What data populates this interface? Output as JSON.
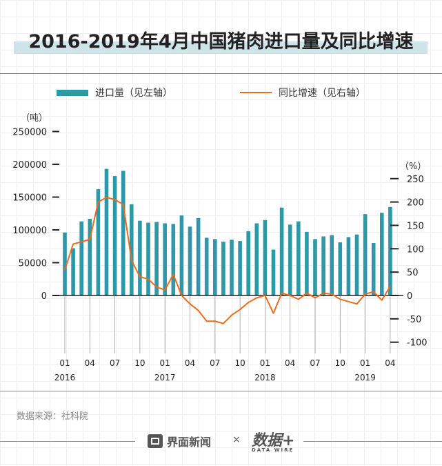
{
  "title": "2016-2019年4月中国猪肉进口量及同比增速",
  "legend": {
    "bar_label": "进口量（见左轴）",
    "line_label": "同比增速（见右轴）"
  },
  "left_unit": "（吨）",
  "right_unit": "（%）",
  "source": "数据来源：社科院",
  "footer": {
    "brand1": "界面新闻",
    "times": "×",
    "brand2": "数据+",
    "brand2_sub": "DATA WIRE"
  },
  "colors": {
    "bar": "#2e97a8",
    "line": "#ef6a1a"
  },
  "chart_data": {
    "type": "bar",
    "title": "2016-2019年4月中国猪肉进口量及同比增速",
    "x_tick_labels": [
      "01",
      "04",
      "07",
      "10",
      "01",
      "04",
      "07",
      "10",
      "01",
      "04",
      "07",
      "10",
      "01",
      "04"
    ],
    "year_labels": [
      "2016",
      "2017",
      "2018",
      "2019"
    ],
    "categories": [
      "2016-01",
      "2016-02",
      "2016-03",
      "2016-04",
      "2016-05",
      "2016-06",
      "2016-07",
      "2016-08",
      "2016-09",
      "2016-10",
      "2016-11",
      "2016-12",
      "2017-01",
      "2017-02",
      "2017-03",
      "2017-04",
      "2017-05",
      "2017-06",
      "2017-07",
      "2017-08",
      "2017-09",
      "2017-10",
      "2017-11",
      "2017-12",
      "2018-01",
      "2018-02",
      "2018-03",
      "2018-04",
      "2018-05",
      "2018-06",
      "2018-07",
      "2018-08",
      "2018-09",
      "2018-10",
      "2018-11",
      "2018-12",
      "2019-01",
      "2019-02",
      "2019-03",
      "2019-04"
    ],
    "series": [
      {
        "name": "进口量（见左轴）",
        "axis": "left",
        "type": "bar",
        "values": [
          96000,
          72000,
          113000,
          117000,
          162000,
          193000,
          182000,
          190000,
          139000,
          114000,
          111000,
          112000,
          110000,
          109000,
          122000,
          105000,
          118000,
          88000,
          86000,
          82000,
          85000,
          83000,
          98000,
          110000,
          115000,
          70000,
          134000,
          108000,
          113000,
          97000,
          86000,
          90000,
          92000,
          81000,
          89000,
          93000,
          124000,
          80000,
          126000,
          135000
        ]
      },
      {
        "name": "同比增速（见右轴）",
        "axis": "right",
        "type": "line",
        "values": [
          55,
          110,
          115,
          120,
          200,
          210,
          205,
          195,
          75,
          40,
          35,
          18,
          12,
          45,
          0,
          -18,
          -32,
          -55,
          -55,
          -60,
          -42,
          -30,
          -15,
          -5,
          0,
          -38,
          5,
          0,
          -8,
          5,
          -5,
          5,
          3,
          -8,
          -13,
          -18,
          3,
          8,
          -10,
          20
        ]
      }
    ],
    "left_axis": {
      "ylim": [
        0,
        250000
      ],
      "ticks": [
        0,
        50000,
        100000,
        150000,
        200000,
        250000
      ]
    },
    "right_axis": {
      "ylim": [
        -100,
        250
      ],
      "ticks": [
        -100,
        -50,
        0,
        50,
        100,
        150,
        200,
        250
      ]
    },
    "grid": false,
    "legend_position": "top"
  }
}
